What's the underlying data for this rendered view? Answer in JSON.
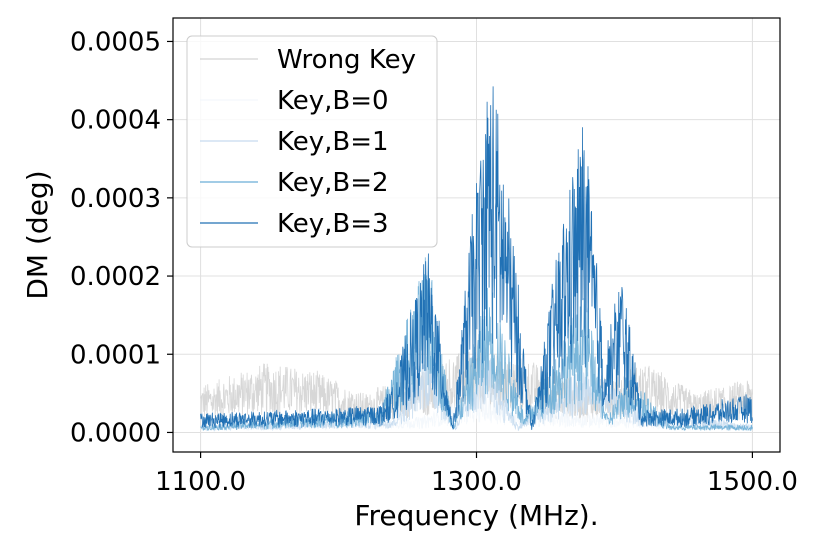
{
  "chart_data": {
    "type": "line",
    "xlabel": "Frequency (MHz).",
    "ylabel": "DM (deg)",
    "xlim": [
      1080,
      1520
    ],
    "ylim": [
      -2.5e-05,
      0.00053
    ],
    "xticks": [
      1100,
      1300,
      1500
    ],
    "xtick_labels": [
      "1100.0",
      "1300.0",
      "1500.0"
    ],
    "yticks": [
      0,
      0.0001,
      0.0002,
      0.0003,
      0.0004,
      0.0005
    ],
    "ytick_labels": [
      "0.0000",
      "0.0001",
      "0.0002",
      "0.0003",
      "0.0004",
      "0.0005"
    ],
    "grid": true,
    "legend": "top-left",
    "x_range": [
      1100,
      1500
    ],
    "series": [
      {
        "name": "Wrong Key",
        "color": "#d3d3d3",
        "stroke_opacity": 0.9,
        "envelope": [
          [
            1100,
            6e-05
          ],
          [
            1150,
            9e-05
          ],
          [
            1180,
            8e-05
          ],
          [
            1220,
            5e-05
          ],
          [
            1260,
            8e-05
          ],
          [
            1300,
            0.00011
          ],
          [
            1340,
            9e-05
          ],
          [
            1380,
            6e-05
          ],
          [
            1420,
            9e-05
          ],
          [
            1460,
            5e-05
          ],
          [
            1500,
            7e-05
          ]
        ]
      },
      {
        "name": "Key,B=0",
        "color": "#f3f7fc",
        "stroke_opacity": 0.9,
        "envelope": [
          [
            1100,
            1e-05
          ],
          [
            1260,
            2e-05
          ],
          [
            1300,
            5e-05
          ],
          [
            1340,
            3e-05
          ],
          [
            1500,
            1e-05
          ]
        ]
      },
      {
        "name": "Key,B=1",
        "color": "#c6dbef",
        "stroke_opacity": 0.9,
        "envelope": [
          [
            1100,
            1e-05
          ],
          [
            1240,
            2e-05
          ],
          [
            1265,
            0.00012
          ],
          [
            1285,
            1e-05
          ],
          [
            1305,
            0.00012
          ],
          [
            1330,
            1e-05
          ],
          [
            1380,
            9e-05
          ],
          [
            1420,
            3e-05
          ],
          [
            1500,
            1e-05
          ]
        ]
      },
      {
        "name": "Key,B=2",
        "color": "#6baed6",
        "stroke_opacity": 0.9,
        "envelope": [
          [
            1100,
            1e-05
          ],
          [
            1230,
            3e-05
          ],
          [
            1265,
            0.00023
          ],
          [
            1283,
            1e-05
          ],
          [
            1310,
            0.0002
          ],
          [
            1335,
            2e-05
          ],
          [
            1378,
            0.00018
          ],
          [
            1395,
            2e-05
          ],
          [
            1410,
            8e-05
          ],
          [
            1440,
            1e-05
          ],
          [
            1500,
            1e-05
          ]
        ]
      },
      {
        "name": "Key,B=3",
        "color": "#2171b5",
        "stroke_opacity": 1.0,
        "envelope": [
          [
            1100,
            2.5e-05
          ],
          [
            1180,
            3e-05
          ],
          [
            1230,
            3.5e-05
          ],
          [
            1240,
            6e-05
          ],
          [
            1265,
            0.00024
          ],
          [
            1283,
            1e-05
          ],
          [
            1295,
            0.00025
          ],
          [
            1310,
            0.00048
          ],
          [
            1325,
            0.00028
          ],
          [
            1340,
            1e-05
          ],
          [
            1360,
            0.00025
          ],
          [
            1378,
            0.00041
          ],
          [
            1393,
            0.0001
          ],
          [
            1405,
            0.00021
          ],
          [
            1420,
            3e-05
          ],
          [
            1450,
            3e-05
          ],
          [
            1500,
            5e-05
          ]
        ]
      }
    ]
  }
}
